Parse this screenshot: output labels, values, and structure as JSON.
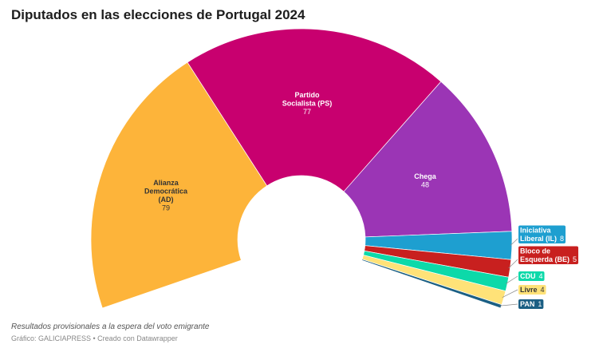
{
  "chart_data": {
    "type": "pie",
    "variant": "semi-donut (parliament)",
    "title": "Diputados en las elecciones de Portugal 2024",
    "categories": [
      "Alianza Democrática (AD)",
      "Partido Socialista (PS)",
      "Chega",
      "Iniciativa Liberal (IL)",
      "Bloco de Esquerda (BE)",
      "CDU",
      "Livre",
      "PAN"
    ],
    "values": [
      79,
      77,
      48,
      8,
      5,
      4,
      4,
      1
    ],
    "colors": [
      "#fdb43a",
      "#c8006f",
      "#9b35b5",
      "#1e9fd0",
      "#c8201f",
      "#0dd9a9",
      "#ffe278",
      "#1b5f84"
    ],
    "label_colors": [
      "#333333",
      "#ffffff",
      "#ffffff",
      "#ffffff",
      "#ffffff",
      "#ffffff",
      "#333333",
      "#ffffff"
    ],
    "note": "Resultados provisionales a la espera del voto emigrante",
    "credit": "Gráfico: GALICIAPRESS • Creado con Datawrapper"
  }
}
